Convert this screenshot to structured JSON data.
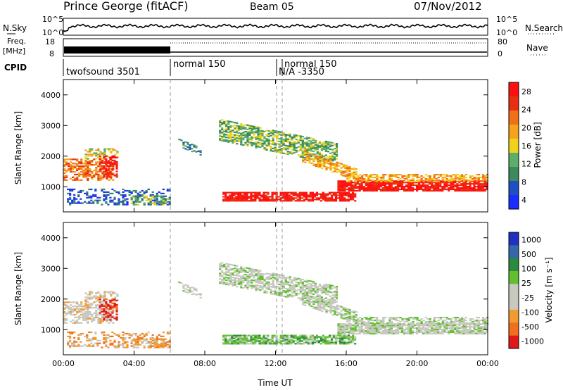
{
  "header": {
    "title": "Prince George (fitACF)",
    "beam": "Beam 05",
    "date": "07/Nov/2012"
  },
  "strips": {
    "nsky_label": "N.Sky",
    "nsky_ticks": [
      "10^5",
      "10^0"
    ],
    "nsearch_label": "N.Search",
    "nsearch_ticks": [
      "10^5",
      "10^0"
    ],
    "freq_label_1": "Freq.",
    "freq_label_2": "[MHz]",
    "freq_ticks": [
      "18",
      "8"
    ],
    "nave_label": "Nave",
    "nave_ticks": [
      "80",
      "0"
    ],
    "cpid_label": "CPID",
    "cpid_segments": [
      {
        "label": "twofsound 3501",
        "start_hour": 0
      },
      {
        "label": "normal 150",
        "start_hour": 6
      },
      {
        "label": "N/A -3350",
        "start_hour": 12
      },
      {
        "label": "normal 150",
        "start_hour": 12.3
      }
    ]
  },
  "colors": {
    "power_scale": [
      "#1a2cff",
      "#1f4fc0",
      "#3b8a5c",
      "#5cae6a",
      "#f0d21c",
      "#f6a21a",
      "#f07018",
      "#e83010",
      "#ff1010"
    ],
    "velocity_scale": [
      "#2030c0",
      "#3468a8",
      "#2a8a40",
      "#60c030",
      "#c8c8c0",
      "#c8c8c0",
      "#f09a30",
      "#f07020",
      "#e01818"
    ]
  },
  "chart_data": [
    {
      "type": "heatmap",
      "title": "",
      "xlabel": "",
      "ylabel": "Slant Range [km]",
      "xlim": [
        0,
        24
      ],
      "ylim": [
        180,
        4500
      ],
      "x_ticks": [
        "00:00",
        "04:00",
        "08:00",
        "12:00",
        "16:00",
        "20:00",
        "00:00"
      ],
      "y_ticks": [
        "1000",
        "2000",
        "3000",
        "4000"
      ],
      "colorbar_label": "Power [dB]",
      "colorbar_ticks": [
        "28",
        "24",
        "20",
        "16",
        "12",
        "8",
        "4"
      ],
      "regions_summary": "band ~700-1000 km rising to ~3000 km from 09:00-16:00; strong band near 1000 km 16:00-24:00"
    },
    {
      "type": "heatmap",
      "title": "",
      "xlabel": "Time UT",
      "ylabel": "Slant Range [km]",
      "xlim": [
        0,
        24
      ],
      "ylim": [
        180,
        4500
      ],
      "x_ticks": [
        "00:00",
        "04:00",
        "08:00",
        "12:00",
        "16:00",
        "20:00",
        "00:00"
      ],
      "y_ticks": [
        "1000",
        "2000",
        "3000",
        "4000"
      ],
      "colorbar_label": "Velocity [m s⁻¹]",
      "colorbar_ticks": [
        "1000",
        "500",
        "100",
        "25",
        "-25",
        "-100",
        "-500",
        "-1000"
      ]
    }
  ]
}
